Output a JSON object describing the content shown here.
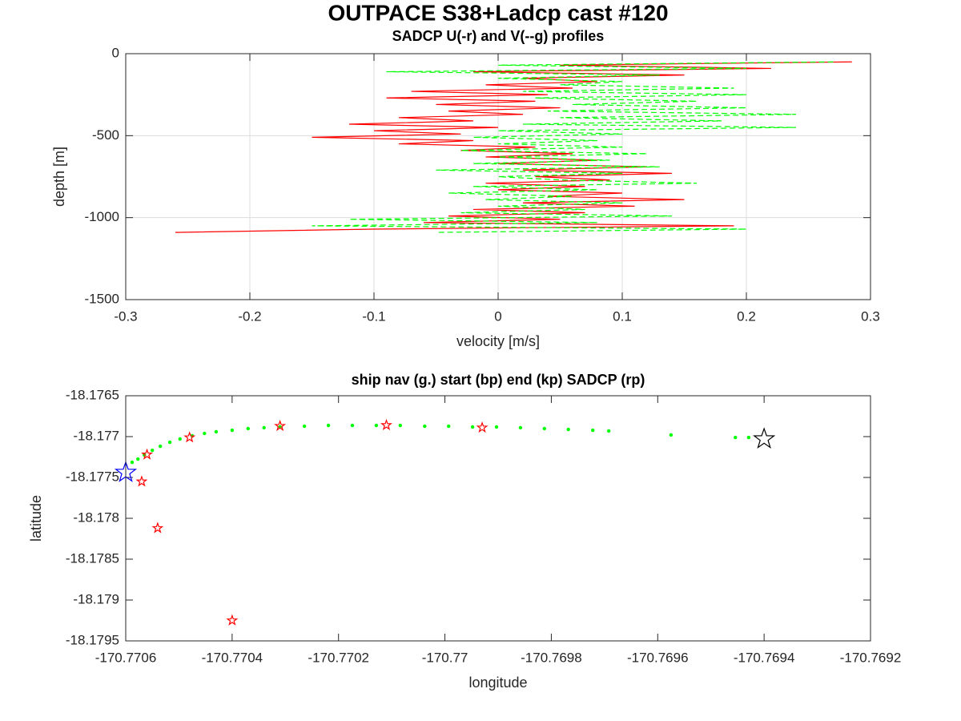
{
  "chart_data": [
    {
      "type": "line",
      "title": "OUTPACE S38+Ladcp cast #120",
      "subtitle": "SADCP U(-r) and V(--g) profiles",
      "xlabel": "velocity [m/s]",
      "ylabel": "depth [m]",
      "xlim": [
        -0.3,
        0.3
      ],
      "xticks": [
        -0.3,
        -0.2,
        -0.1,
        0,
        0.1,
        0.2,
        0.3
      ],
      "ylim": [
        -1500,
        0
      ],
      "yticks": [
        -1500,
        -1000,
        -500,
        0
      ],
      "grid": true,
      "series": [
        {
          "color": "#ff0000",
          "linestyle": "solid",
          "x": [
            0.285,
            0.05,
            0.22,
            -0.02,
            0.15,
            0.02,
            0.08,
            -0.01,
            0.06,
            -0.07,
            0.04,
            -0.09,
            0.03,
            -0.05,
            0.05,
            -0.04,
            0.02,
            -0.08,
            -0.02,
            -0.12,
            0.0,
            -0.1,
            -0.03,
            -0.15,
            -0.02,
            -0.08,
            0.03,
            -0.03,
            0.06,
            -0.01,
            0.08,
            0.0,
            0.12,
            0.02,
            0.14,
            0.03,
            0.09,
            -0.01,
            0.07,
            0.0,
            0.1,
            0.04,
            0.15,
            0.02,
            0.11,
            -0.02,
            0.07,
            -0.04,
            0.05,
            -0.06,
            0.19,
            -0.1,
            -0.26
          ],
          "values": [
            -50,
            -70,
            -90,
            -110,
            -130,
            -150,
            -170,
            -190,
            -210,
            -230,
            -250,
            -270,
            -290,
            -310,
            -330,
            -350,
            -370,
            -390,
            -410,
            -430,
            -450,
            -470,
            -490,
            -510,
            -530,
            -550,
            -570,
            -590,
            -610,
            -630,
            -650,
            -670,
            -690,
            -710,
            -730,
            -750,
            -770,
            -790,
            -810,
            -830,
            -850,
            -870,
            -890,
            -910,
            -930,
            -950,
            -970,
            -990,
            -1010,
            -1030,
            -1050,
            -1070,
            -1090
          ]
        },
        {
          "color": "#00ff00",
          "linestyle": "dashed",
          "x": [
            0.27,
            0.0,
            0.2,
            -0.09,
            0.13,
            0.0,
            0.1,
            0.05,
            0.19,
            0.02,
            0.2,
            0.03,
            0.16,
            0.06,
            0.2,
            0.04,
            0.24,
            0.05,
            0.18,
            0.02,
            0.24,
            0.0,
            0.1,
            -0.02,
            0.08,
            0.0,
            0.1,
            -0.03,
            0.12,
            0.0,
            0.09,
            -0.02,
            0.13,
            -0.05,
            0.1,
            0.0,
            0.05,
            0.16,
            -0.02,
            0.08,
            -0.04,
            0.06,
            -0.01,
            0.1,
            0.0,
            0.07,
            -0.03,
            0.14,
            -0.12,
            0.08,
            -0.15,
            0.2,
            -0.05
          ],
          "values": [
            -50,
            -70,
            -90,
            -110,
            -130,
            -150,
            -170,
            -190,
            -210,
            -230,
            -250,
            -270,
            -290,
            -310,
            -330,
            -350,
            -370,
            -390,
            -410,
            -430,
            -450,
            -470,
            -490,
            -510,
            -530,
            -550,
            -570,
            -590,
            -610,
            -630,
            -650,
            -670,
            -690,
            -710,
            -730,
            -750,
            -770,
            -790,
            -810,
            -830,
            -850,
            -870,
            -890,
            -910,
            -930,
            -950,
            -970,
            -990,
            -1010,
            -1030,
            -1050,
            -1070,
            -1090
          ]
        }
      ]
    },
    {
      "type": "scatter",
      "title": "ship nav (g.) start (bp) end (kp) SADCP (rp)",
      "xlabel": "longitude",
      "ylabel": "latitude",
      "xlim": [
        -170.7706,
        -170.7692
      ],
      "xticks": [
        -170.7706,
        -170.7704,
        -170.7702,
        -170.77,
        -170.7698,
        -170.7696,
        -170.7694,
        -170.7692
      ],
      "ylim": [
        -18.1795,
        -18.1765
      ],
      "yticks": [
        -18.1795,
        -18.179,
        -18.1785,
        -18.178,
        -18.1775,
        -18.177,
        -18.1765
      ],
      "grid": false,
      "series": [
        {
          "color": "#00ff00",
          "marker": "dot",
          "x": [
            -170.770588,
            -170.770577,
            -170.770565,
            -170.77055,
            -170.770535,
            -170.770517,
            -170.770498,
            -170.770475,
            -170.770452,
            -170.77043,
            -170.7704,
            -170.77037,
            -170.77034,
            -170.77031,
            -170.770264,
            -170.770219,
            -170.770174,
            -170.770129,
            -170.770084,
            -170.770038,
            -170.769993,
            -170.769948,
            -170.769903,
            -170.769858,
            -170.769813,
            -170.769768,
            -170.769722,
            -170.769692,
            -170.769575,
            -170.769454,
            -170.769429
          ],
          "values": [
            -18.177314,
            -18.177275,
            -18.177225,
            -18.177167,
            -18.177118,
            -18.177069,
            -18.177029,
            -18.17699,
            -18.176961,
            -18.176941,
            -18.176922,
            -18.176902,
            -18.176892,
            -18.176882,
            -18.176873,
            -18.176863,
            -18.176863,
            -18.176863,
            -18.176863,
            -18.176873,
            -18.176873,
            -18.176882,
            -18.176882,
            -18.176892,
            -18.176902,
            -18.176912,
            -18.176922,
            -18.176931,
            -18.17698,
            -18.17701,
            -18.17701
          ]
        },
        {
          "color": "#0000ff",
          "marker": "star",
          "x": [
            -170.7706
          ],
          "values": [
            -18.17744
          ]
        },
        {
          "color": "#000000",
          "marker": "star",
          "x": [
            -170.7694
          ],
          "values": [
            -18.17703
          ]
        },
        {
          "color": "#ff0000",
          "marker": "star",
          "x": [
            -170.77056,
            -170.77057,
            -170.77054,
            -170.77048,
            -170.7704,
            -170.77031,
            -170.77011,
            -170.76993
          ],
          "values": [
            -18.17722,
            -18.17755,
            -18.17812,
            -18.17701,
            -18.17925,
            -18.17687,
            -18.17686,
            -18.17689
          ]
        }
      ]
    }
  ]
}
